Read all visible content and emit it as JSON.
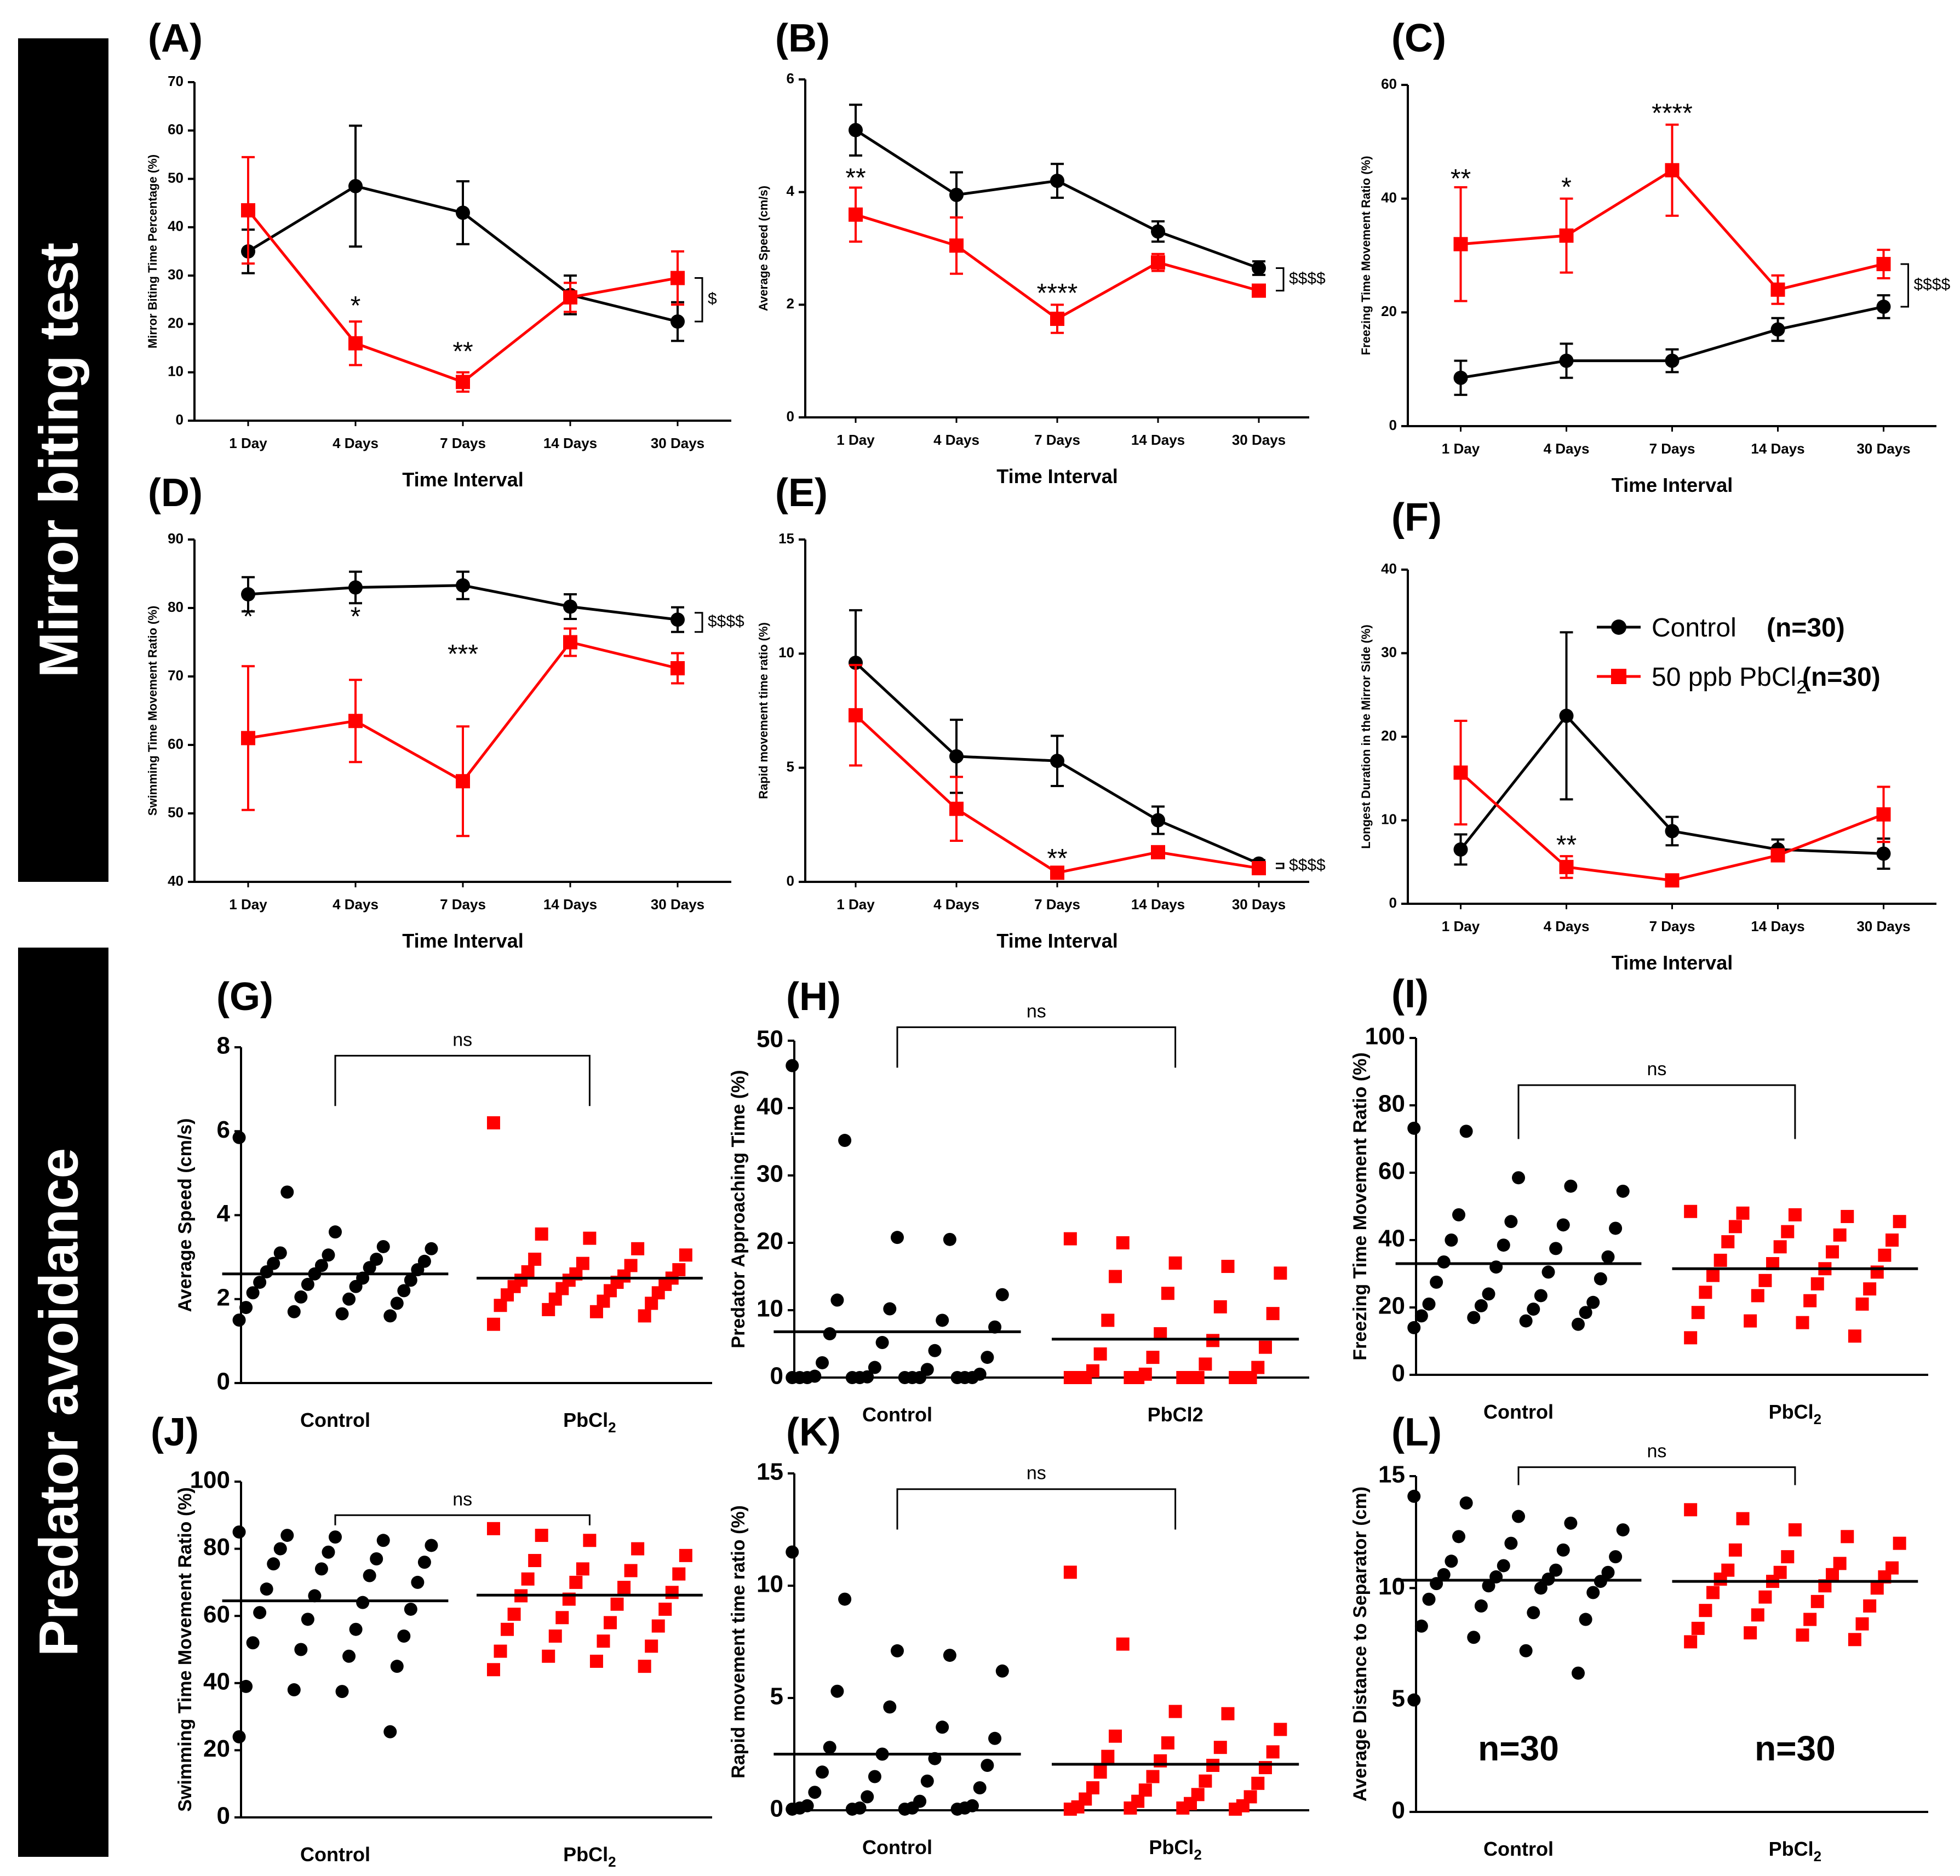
{
  "sections": {
    "top": "Mirror biting test",
    "bottom": "Predator avoidance"
  },
  "legend": {
    "control_label": "Control",
    "control_n": "(n=30)",
    "treat_label": "50 ppb PbCl",
    "treat_sub": "2",
    "treat_n": "(n=30)"
  },
  "colors": {
    "control": "#000000",
    "treatment": "#ff0000",
    "side_panel": "#000000"
  },
  "chart_data": [
    {
      "id": "A",
      "letter": "(A)",
      "type": "line",
      "categories": [
        "1 Day",
        "4 Days",
        "7 Days",
        "14 Days",
        "30 Days"
      ],
      "xlabel": "Time Interval",
      "ylabel": "Mirror Biting Time Percentage (%)",
      "ylim": [
        0,
        70
      ],
      "yticks": [
        0,
        10,
        20,
        30,
        40,
        50,
        60,
        70
      ],
      "series": [
        {
          "name": "Control",
          "values": [
            35,
            48.5,
            43,
            26,
            20.5
          ],
          "err": [
            4.5,
            12.5,
            6.5,
            4,
            4
          ]
        },
        {
          "name": "50 ppb PbCl2",
          "values": [
            43.5,
            16,
            8,
            25.5,
            29.5
          ],
          "err": [
            11,
            4.5,
            2,
            3,
            5.5
          ]
        }
      ],
      "annotations": [
        {
          "cat": 1,
          "y": 22,
          "text": "*"
        },
        {
          "cat": 2,
          "y": 12.5,
          "text": "**"
        }
      ],
      "bracket": {
        "y1": 20.5,
        "y2": 29.5,
        "text": "$"
      }
    },
    {
      "id": "B",
      "letter": "(B)",
      "type": "line",
      "categories": [
        "1 Day",
        "4 Days",
        "7 Days",
        "14 Days",
        "30 Days"
      ],
      "xlabel": "Time Interval",
      "ylabel": "Average Speed (cm/s)",
      "ylim": [
        0,
        6
      ],
      "yticks": [
        0,
        2,
        4,
        6
      ],
      "series": [
        {
          "name": "Control",
          "values": [
            5.1,
            3.95,
            4.2,
            3.3,
            2.65
          ],
          "err": [
            0.45,
            0.4,
            0.3,
            0.18,
            0.12
          ]
        },
        {
          "name": "50 ppb PbCl2",
          "values": [
            3.6,
            3.05,
            1.75,
            2.75,
            2.25
          ],
          "err": [
            0.48,
            0.5,
            0.25,
            0.15,
            0.1
          ]
        }
      ],
      "annotations": [
        {
          "cat": 0,
          "y": 4.1,
          "text": "**"
        },
        {
          "cat": 2,
          "y": 2.05,
          "text": "****"
        }
      ],
      "bracket": {
        "y1": 2.25,
        "y2": 2.65,
        "text": "$$$$"
      }
    },
    {
      "id": "C",
      "letter": "(C)",
      "type": "line",
      "categories": [
        "1 Day",
        "4 Days",
        "7 Days",
        "14 Days",
        "30 Days"
      ],
      "xlabel": "Time Interval",
      "ylabel": "Freezing Time Movement Ratio (%)",
      "ylim": [
        0,
        60
      ],
      "yticks": [
        0,
        20,
        40,
        60
      ],
      "series": [
        {
          "name": "Control",
          "values": [
            8.5,
            11.5,
            11.5,
            17,
            21
          ],
          "err": [
            3,
            3,
            2,
            2,
            2
          ]
        },
        {
          "name": "50 ppb PbCl2",
          "values": [
            32,
            33.5,
            45,
            24,
            28.5
          ],
          "err": [
            10,
            6.5,
            8,
            2.5,
            2.5
          ]
        }
      ],
      "annotations": [
        {
          "cat": 0,
          "y": 42,
          "text": "**"
        },
        {
          "cat": 1,
          "y": 40.5,
          "text": "*"
        },
        {
          "cat": 2,
          "y": 53.5,
          "text": "****"
        }
      ],
      "bracket": {
        "y1": 21,
        "y2": 28.5,
        "text": "$$$$"
      }
    },
    {
      "id": "D",
      "letter": "(D)",
      "type": "line",
      "categories": [
        "1 Day",
        "4 Days",
        "7 Days",
        "14 Days",
        "30 Days"
      ],
      "xlabel": "Time Interval",
      "ylabel": "Swimming Time Movement Ratio (%)",
      "ylim": [
        40,
        90
      ],
      "yticks": [
        40,
        50,
        60,
        70,
        80,
        90
      ],
      "series": [
        {
          "name": "Control",
          "values": [
            82,
            83,
            83.3,
            80.2,
            78.3
          ],
          "err": [
            2.5,
            2.3,
            2,
            1.8,
            1.8
          ]
        },
        {
          "name": "50 ppb PbCl2",
          "values": [
            61,
            63.5,
            54.7,
            75,
            71.2
          ],
          "err": [
            10.5,
            6,
            8,
            2,
            2.2
          ]
        }
      ],
      "annotations": [
        {
          "cat": 0,
          "y": 77.5,
          "text": "*"
        },
        {
          "cat": 1,
          "y": 77.5,
          "text": "*"
        },
        {
          "cat": 2,
          "y": 72,
          "text": "***"
        }
      ],
      "bracket": {
        "y1": 76.5,
        "y2": 79.3,
        "text": "$$$$"
      }
    },
    {
      "id": "E",
      "letter": "(E)",
      "type": "line",
      "categories": [
        "1 Day",
        "4 Days",
        "7 Days",
        "14 Days",
        "30 Days"
      ],
      "xlabel": "Time Interval",
      "ylabel": "Rapid movement time ratio (%)",
      "ylim": [
        0,
        15
      ],
      "yticks": [
        0,
        5,
        10,
        15
      ],
      "series": [
        {
          "name": "Control",
          "values": [
            9.6,
            5.5,
            5.3,
            2.7,
            0.8
          ],
          "err": [
            2.3,
            1.6,
            1.1,
            0.6,
            0.15
          ]
        },
        {
          "name": "50 ppb PbCl2",
          "values": [
            7.3,
            3.2,
            0.4,
            1.3,
            0.6
          ],
          "err": [
            2.2,
            1.4,
            0.2,
            0.2,
            0.1
          ]
        }
      ],
      "annotations": [
        {
          "cat": 2,
          "y": 0.65,
          "text": "**"
        }
      ],
      "bracket": {
        "y1": 0.6,
        "y2": 0.8,
        "text": "$$$$"
      }
    },
    {
      "id": "F",
      "letter": "(F)",
      "type": "line",
      "categories": [
        "1 Day",
        "4 Days",
        "7 Days",
        "14 Days",
        "30 Days"
      ],
      "xlabel": "Time Interval",
      "ylabel": "Longest Duration in the Mirror Side (%)",
      "ylim": [
        0,
        40
      ],
      "yticks": [
        0,
        10,
        20,
        30,
        40
      ],
      "series": [
        {
          "name": "Control",
          "values": [
            6.5,
            22.5,
            8.7,
            6.5,
            6
          ],
          "err": [
            1.8,
            10,
            1.7,
            1.2,
            1.8
          ]
        },
        {
          "name": "50 ppb PbCl2",
          "values": [
            15.7,
            4.4,
            2.8,
            5.8,
            10.7
          ],
          "err": [
            6.2,
            1.3,
            0.4,
            0.6,
            3.3
          ]
        }
      ],
      "annotations": [
        {
          "cat": 1,
          "y": 6,
          "text": "**"
        }
      ],
      "bracket": null
    },
    {
      "id": "G",
      "letter": "(G)",
      "type": "scatter",
      "categories": [
        "Control",
        "PbCl2"
      ],
      "ylabel": "Average Speed (cm/s)",
      "ylim": [
        0,
        8
      ],
      "yticks": [
        0,
        2,
        4,
        6,
        8
      ],
      "sig": "ns",
      "sig_y": 7.8,
      "sig_drop": 6.6,
      "control": [
        5.85,
        4.55,
        3.6,
        3.25,
        3.2,
        3.1,
        3.05,
        2.95,
        2.9,
        2.85,
        2.8,
        2.75,
        2.7,
        2.65,
        2.6,
        2.5,
        2.45,
        2.4,
        2.35,
        2.3,
        2.2,
        2.15,
        2.05,
        2.0,
        1.9,
        1.8,
        1.7,
        1.65,
        1.6,
        1.5
      ],
      "treatment": [
        6.2,
        3.55,
        3.45,
        3.2,
        3.05,
        2.95,
        2.85,
        2.8,
        2.7,
        2.65,
        2.6,
        2.55,
        2.5,
        2.45,
        2.45,
        2.4,
        2.35,
        2.3,
        2.25,
        2.2,
        2.15,
        2.1,
        2.0,
        1.95,
        1.9,
        1.85,
        1.75,
        1.7,
        1.6,
        1.4
      ],
      "means": [
        2.6,
        2.5
      ]
    },
    {
      "id": "H",
      "letter": "(H)",
      "type": "scatter",
      "categories": [
        "Control",
        "PbCl2"
      ],
      "ylabel": "Predator Approaching Time (%)",
      "ylim": [
        0,
        50
      ],
      "yticks": [
        0,
        10,
        20,
        30,
        40,
        50
      ],
      "sig": "ns",
      "sig_y": 52,
      "sig_drop": 46,
      "control": [
        46.3,
        35.2,
        20.8,
        20.5,
        12.3,
        11.5,
        10.2,
        8.5,
        7.5,
        6.5,
        5.2,
        4.0,
        3.0,
        2.2,
        1.5,
        1.2,
        0.5,
        0.2,
        0.1,
        0,
        0,
        0,
        0,
        0,
        0,
        0,
        0,
        0,
        0,
        0
      ],
      "treatment": [
        20.6,
        20.0,
        17.0,
        16.5,
        15.5,
        15.0,
        12.5,
        10.5,
        9.5,
        8.5,
        6.5,
        5.5,
        4.5,
        3.5,
        3.0,
        2.0,
        1.5,
        1.0,
        0.5,
        0,
        0,
        0,
        0,
        0,
        0,
        0,
        0,
        0,
        0,
        0
      ],
      "means": [
        6.8,
        5.7
      ]
    },
    {
      "id": "I",
      "letter": "(I)",
      "type": "scatter",
      "categories": [
        "Control",
        "PbCl2"
      ],
      "ylabel": "Freezing Time Movement Ratio (%)",
      "ylim": [
        0,
        100
      ],
      "yticks": [
        0,
        20,
        40,
        60,
        80,
        100
      ],
      "sig": "ns",
      "sig_y": 86,
      "sig_drop": 70,
      "control": [
        73.2,
        72.3,
        58.5,
        56.0,
        54.5,
        47.5,
        45.5,
        44.5,
        43.5,
        40.0,
        38.5,
        37.5,
        35.0,
        33.5,
        32.0,
        30.5,
        28.5,
        27.5,
        24.0,
        23.5,
        21.5,
        21.0,
        20.5,
        19.5,
        18.5,
        17.5,
        17.0,
        16.0,
        15.0,
        14.0
      ],
      "treatment": [
        48.5,
        48.0,
        47.5,
        47.0,
        45.5,
        44.0,
        42.5,
        41.5,
        40.0,
        39.5,
        38.0,
        36.5,
        35.5,
        34.0,
        33.0,
        31.5,
        30.5,
        29.5,
        28.0,
        27.0,
        25.5,
        24.5,
        23.5,
        22.0,
        21.0,
        18.5,
        16.0,
        15.5,
        11.5,
        11.0
      ],
      "means": [
        33,
        31.5
      ]
    },
    {
      "id": "J",
      "letter": "(J)",
      "type": "scatter",
      "categories": [
        "Control",
        "PbCl2"
      ],
      "ylabel": "Swimming Time Movement Ratio (%)",
      "ylim": [
        0,
        100
      ],
      "yticks": [
        0,
        20,
        40,
        60,
        80,
        100
      ],
      "sig": "ns",
      "sig_y": 90,
      "sig_drop": 87,
      "control": [
        85.0,
        84.0,
        83.5,
        82.5,
        81.0,
        80.0,
        79.0,
        77.0,
        76.0,
        75.5,
        74.0,
        72.0,
        70.0,
        68.0,
        66.0,
        64.0,
        62.0,
        61.0,
        59.0,
        56.0,
        54.0,
        52.0,
        50.0,
        48.0,
        45.0,
        39.0,
        38.0,
        37.5,
        25.5,
        24.0
      ],
      "treatment": [
        86.0,
        84.0,
        82.5,
        80.0,
        78.0,
        76.5,
        74.0,
        73.5,
        72.5,
        71.0,
        70.0,
        68.5,
        67.0,
        66.0,
        65.0,
        63.5,
        62.0,
        60.5,
        59.5,
        58.0,
        57.0,
        56.0,
        54.0,
        52.5,
        51.0,
        49.5,
        48.0,
        46.5,
        45.0,
        44.0
      ],
      "means": [
        64.5,
        66.2
      ]
    },
    {
      "id": "K",
      "letter": "(K)",
      "type": "scatter",
      "categories": [
        "Control",
        "PbCl2"
      ],
      "ylabel": "Rapid movement time ratio (%)",
      "ylim": [
        0,
        15
      ],
      "yticks": [
        0,
        5,
        10,
        15
      ],
      "sig": "ns",
      "sig_y": 14.3,
      "sig_drop": 12.5,
      "control": [
        11.5,
        9.4,
        7.1,
        6.9,
        6.2,
        5.3,
        4.6,
        3.7,
        3.2,
        2.8,
        2.5,
        2.3,
        2.0,
        1.7,
        1.5,
        1.3,
        1.0,
        0.8,
        0.6,
        0.4,
        0.2,
        0.2,
        0.1,
        0.1,
        0.1,
        0.1,
        0.05,
        0.05,
        0.05,
        0.05
      ],
      "treatment": [
        10.6,
        7.4,
        4.4,
        4.3,
        3.6,
        3.3,
        3.0,
        2.8,
        2.6,
        2.4,
        2.2,
        2.0,
        1.9,
        1.7,
        1.5,
        1.3,
        1.2,
        1.0,
        0.9,
        0.7,
        0.6,
        0.5,
        0.4,
        0.3,
        0.2,
        0.15,
        0.1,
        0.1,
        0.05,
        0.05
      ],
      "means": [
        2.5,
        2.05
      ]
    },
    {
      "id": "L",
      "letter": "(L)",
      "type": "scatter",
      "categories": [
        "Control",
        "PbCl2"
      ],
      "ylabel": "Average Distance to Separator (cm)",
      "ylim": [
        0,
        15
      ],
      "yticks": [
        0,
        5,
        10,
        15
      ],
      "sig": "ns",
      "sig_y": 15.4,
      "sig_drop": 14.6,
      "control": [
        14.1,
        13.8,
        13.2,
        12.9,
        12.6,
        12.3,
        12.0,
        11.7,
        11.4,
        11.2,
        11.0,
        10.8,
        10.7,
        10.6,
        10.5,
        10.4,
        10.3,
        10.2,
        10.1,
        10.0,
        9.8,
        9.5,
        9.2,
        8.9,
        8.6,
        8.3,
        7.8,
        7.2,
        6.2,
        5.0
      ],
      "treatment": [
        13.5,
        13.1,
        12.6,
        12.3,
        12.0,
        11.7,
        11.4,
        11.1,
        10.9,
        10.8,
        10.7,
        10.6,
        10.5,
        10.4,
        10.3,
        10.1,
        10.0,
        9.8,
        9.6,
        9.4,
        9.2,
        9.0,
        8.8,
        8.6,
        8.4,
        8.2,
        8.0,
        7.9,
        7.7,
        7.6
      ],
      "means": [
        10.35,
        10.3
      ],
      "n_labels": [
        "n=30",
        "n=30"
      ]
    }
  ]
}
